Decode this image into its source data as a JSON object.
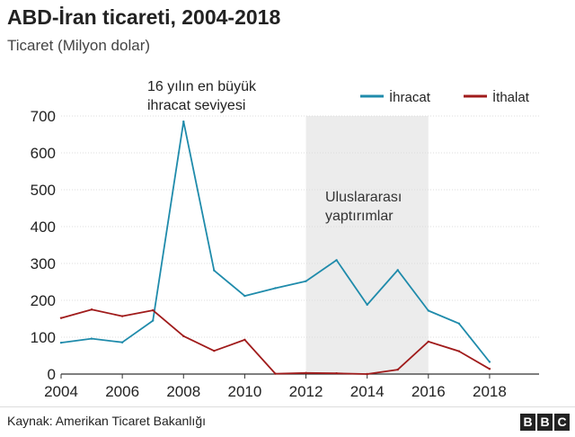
{
  "header": {
    "title": "ABD-İran ticareti, 2004-2018",
    "subtitle": "Ticaret (Milyon dolar)"
  },
  "footer": {
    "source": "Kaynak: Amerikan Ticaret Bakanlığı",
    "logo_letters": [
      "B",
      "B",
      "C"
    ]
  },
  "chart_data": {
    "type": "line",
    "title": "ABD-İran ticareti, 2004-2018",
    "ylabel": "Ticaret (Milyon dolar)",
    "xlabel": "",
    "xlim": [
      2004,
      2019
    ],
    "ylim": [
      0,
      700
    ],
    "x_ticks": [
      2004,
      2006,
      2008,
      2010,
      2012,
      2014,
      2016,
      2018
    ],
    "y_ticks": [
      0,
      100,
      200,
      300,
      400,
      500,
      600,
      700
    ],
    "grid": true,
    "legend_position": "top-right",
    "series": [
      {
        "name": "İhracat",
        "color": "#1f8bab",
        "x": [
          2004,
          2005,
          2006,
          2007,
          2008,
          2009,
          2010,
          2011,
          2012,
          2013,
          2014,
          2015,
          2016,
          2017,
          2018
        ],
        "values": [
          85,
          96,
          86,
          145,
          685,
          281,
          212,
          233,
          252,
          309,
          188,
          282,
          172,
          137,
          33
        ]
      },
      {
        "name": "İthalat",
        "color": "#a01b1b",
        "x": [
          2004,
          2005,
          2006,
          2007,
          2008,
          2009,
          2010,
          2011,
          2012,
          2013,
          2014,
          2015,
          2016,
          2017,
          2018
        ],
        "values": [
          152,
          175,
          157,
          173,
          103,
          63,
          93,
          1,
          3,
          2,
          0,
          12,
          88,
          62,
          14
        ]
      }
    ],
    "shaded_region": {
      "x_range": [
        2012,
        2016
      ],
      "label_lines": [
        "Uluslararası",
        "yaptırımlar"
      ],
      "color": "#ececec"
    },
    "annotations": [
      {
        "x": 2008,
        "y": 685,
        "lines": [
          "16 yılın en büyük",
          "ihracat seviyesi"
        ]
      }
    ]
  }
}
